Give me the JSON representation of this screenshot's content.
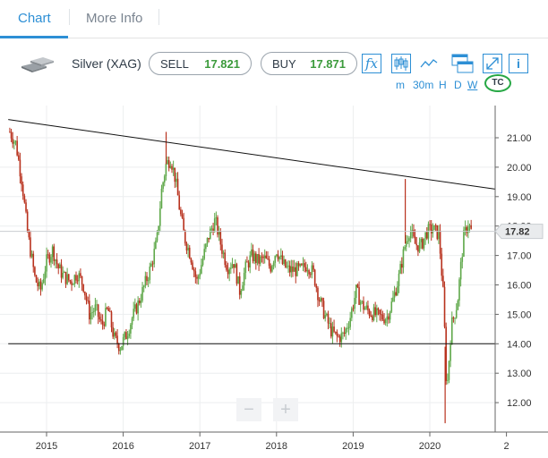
{
  "tabs": {
    "chart": "Chart",
    "more_info": "More Info"
  },
  "instrument": {
    "name": "Silver (XAG)",
    "sell_label": "SELL",
    "sell_value": "17.821",
    "buy_label": "BUY",
    "buy_value": "17.871",
    "fx_label": "fx",
    "info_label": "i"
  },
  "timeframes": [
    "m",
    "30m",
    "H",
    "D",
    "W"
  ],
  "tc_label": "TC",
  "zoom": {
    "out": "−",
    "in": "+"
  },
  "colors": {
    "accent": "#2d8fd5",
    "price_green": "#3c9b3c",
    "candle_up": "#5fa84a",
    "candle_down": "#b8321e",
    "tc_green": "#27a845"
  },
  "chart_data": {
    "type": "candlestick",
    "current_price_label": "17.82",
    "current_price": 17.82,
    "ylim": [
      11.2,
      21.6
    ],
    "y_ticks": [
      "12.00",
      "13.00",
      "14.00",
      "15.00",
      "16.00",
      "17.00",
      "18.00",
      "19.00",
      "20.00",
      "21.00"
    ],
    "x_ticks": [
      "2015",
      "2016",
      "2017",
      "2018",
      "2019",
      "2020",
      "2"
    ],
    "price_path": [
      [
        2014.52,
        21.2
      ],
      [
        2014.6,
        20.8
      ],
      [
        2014.68,
        19.5
      ],
      [
        2014.75,
        17.8
      ],
      [
        2014.85,
        16.2
      ],
      [
        2014.92,
        15.8
      ],
      [
        2015.0,
        16.8
      ],
      [
        2015.08,
        17.2
      ],
      [
        2015.15,
        16.6
      ],
      [
        2015.22,
        16.3
      ],
      [
        2015.32,
        16.1
      ],
      [
        2015.4,
        16.4
      ],
      [
        2015.48,
        16.0
      ],
      [
        2015.56,
        15.0
      ],
      [
        2015.64,
        15.2
      ],
      [
        2015.72,
        14.6
      ],
      [
        2015.8,
        15.2
      ],
      [
        2015.88,
        14.2
      ],
      [
        2015.96,
        13.9
      ],
      [
        2016.04,
        14.3
      ],
      [
        2016.12,
        14.9
      ],
      [
        2016.2,
        15.4
      ],
      [
        2016.28,
        16.0
      ],
      [
        2016.36,
        16.6
      ],
      [
        2016.44,
        17.5
      ],
      [
        2016.5,
        19.2
      ],
      [
        2016.56,
        20.1
      ],
      [
        2016.62,
        20.3
      ],
      [
        2016.68,
        19.6
      ],
      [
        2016.74,
        18.5
      ],
      [
        2016.8,
        17.6
      ],
      [
        2016.88,
        17.0
      ],
      [
        2016.96,
        16.1
      ],
      [
        2017.04,
        16.9
      ],
      [
        2017.12,
        17.7
      ],
      [
        2017.2,
        18.2
      ],
      [
        2017.28,
        17.3
      ],
      [
        2017.36,
        16.6
      ],
      [
        2017.44,
        16.8
      ],
      [
        2017.52,
        15.8
      ],
      [
        2017.6,
        16.6
      ],
      [
        2017.68,
        17.0
      ],
      [
        2017.76,
        16.8
      ],
      [
        2017.84,
        16.9
      ],
      [
        2017.92,
        16.6
      ],
      [
        2018.0,
        17.2
      ],
      [
        2018.08,
        16.7
      ],
      [
        2018.16,
        16.5
      ],
      [
        2018.24,
        16.5
      ],
      [
        2018.32,
        16.5
      ],
      [
        2018.4,
        16.7
      ],
      [
        2018.48,
        16.4
      ],
      [
        2018.56,
        15.5
      ],
      [
        2018.64,
        14.9
      ],
      [
        2018.72,
        14.4
      ],
      [
        2018.8,
        14.2
      ],
      [
        2018.88,
        14.3
      ],
      [
        2018.96,
        14.9
      ],
      [
        2019.04,
        15.8
      ],
      [
        2019.12,
        15.3
      ],
      [
        2019.2,
        15.1
      ],
      [
        2019.28,
        15.0
      ],
      [
        2019.36,
        14.9
      ],
      [
        2019.44,
        14.9
      ],
      [
        2019.52,
        15.5
      ],
      [
        2019.6,
        16.3
      ],
      [
        2019.68,
        17.4
      ],
      [
        2019.74,
        17.9
      ],
      [
        2019.8,
        17.4
      ],
      [
        2019.88,
        17.3
      ],
      [
        2019.96,
        17.8
      ],
      [
        2020.04,
        17.9
      ],
      [
        2020.12,
        17.7
      ],
      [
        2020.18,
        15.5
      ],
      [
        2020.22,
        12.3
      ],
      [
        2020.28,
        14.6
      ],
      [
        2020.36,
        15.4
      ],
      [
        2020.44,
        17.6
      ],
      [
        2020.5,
        18.1
      ],
      [
        2020.54,
        17.82
      ]
    ],
    "lines": [
      {
        "name": "descending-trendline",
        "from": [
          2014.5,
          21.62
        ],
        "to": [
          2021.0,
          19.2
        ]
      },
      {
        "name": "support-line",
        "from": [
          2014.5,
          14.0
        ],
        "to": [
          2021.0,
          14.0
        ]
      }
    ]
  }
}
